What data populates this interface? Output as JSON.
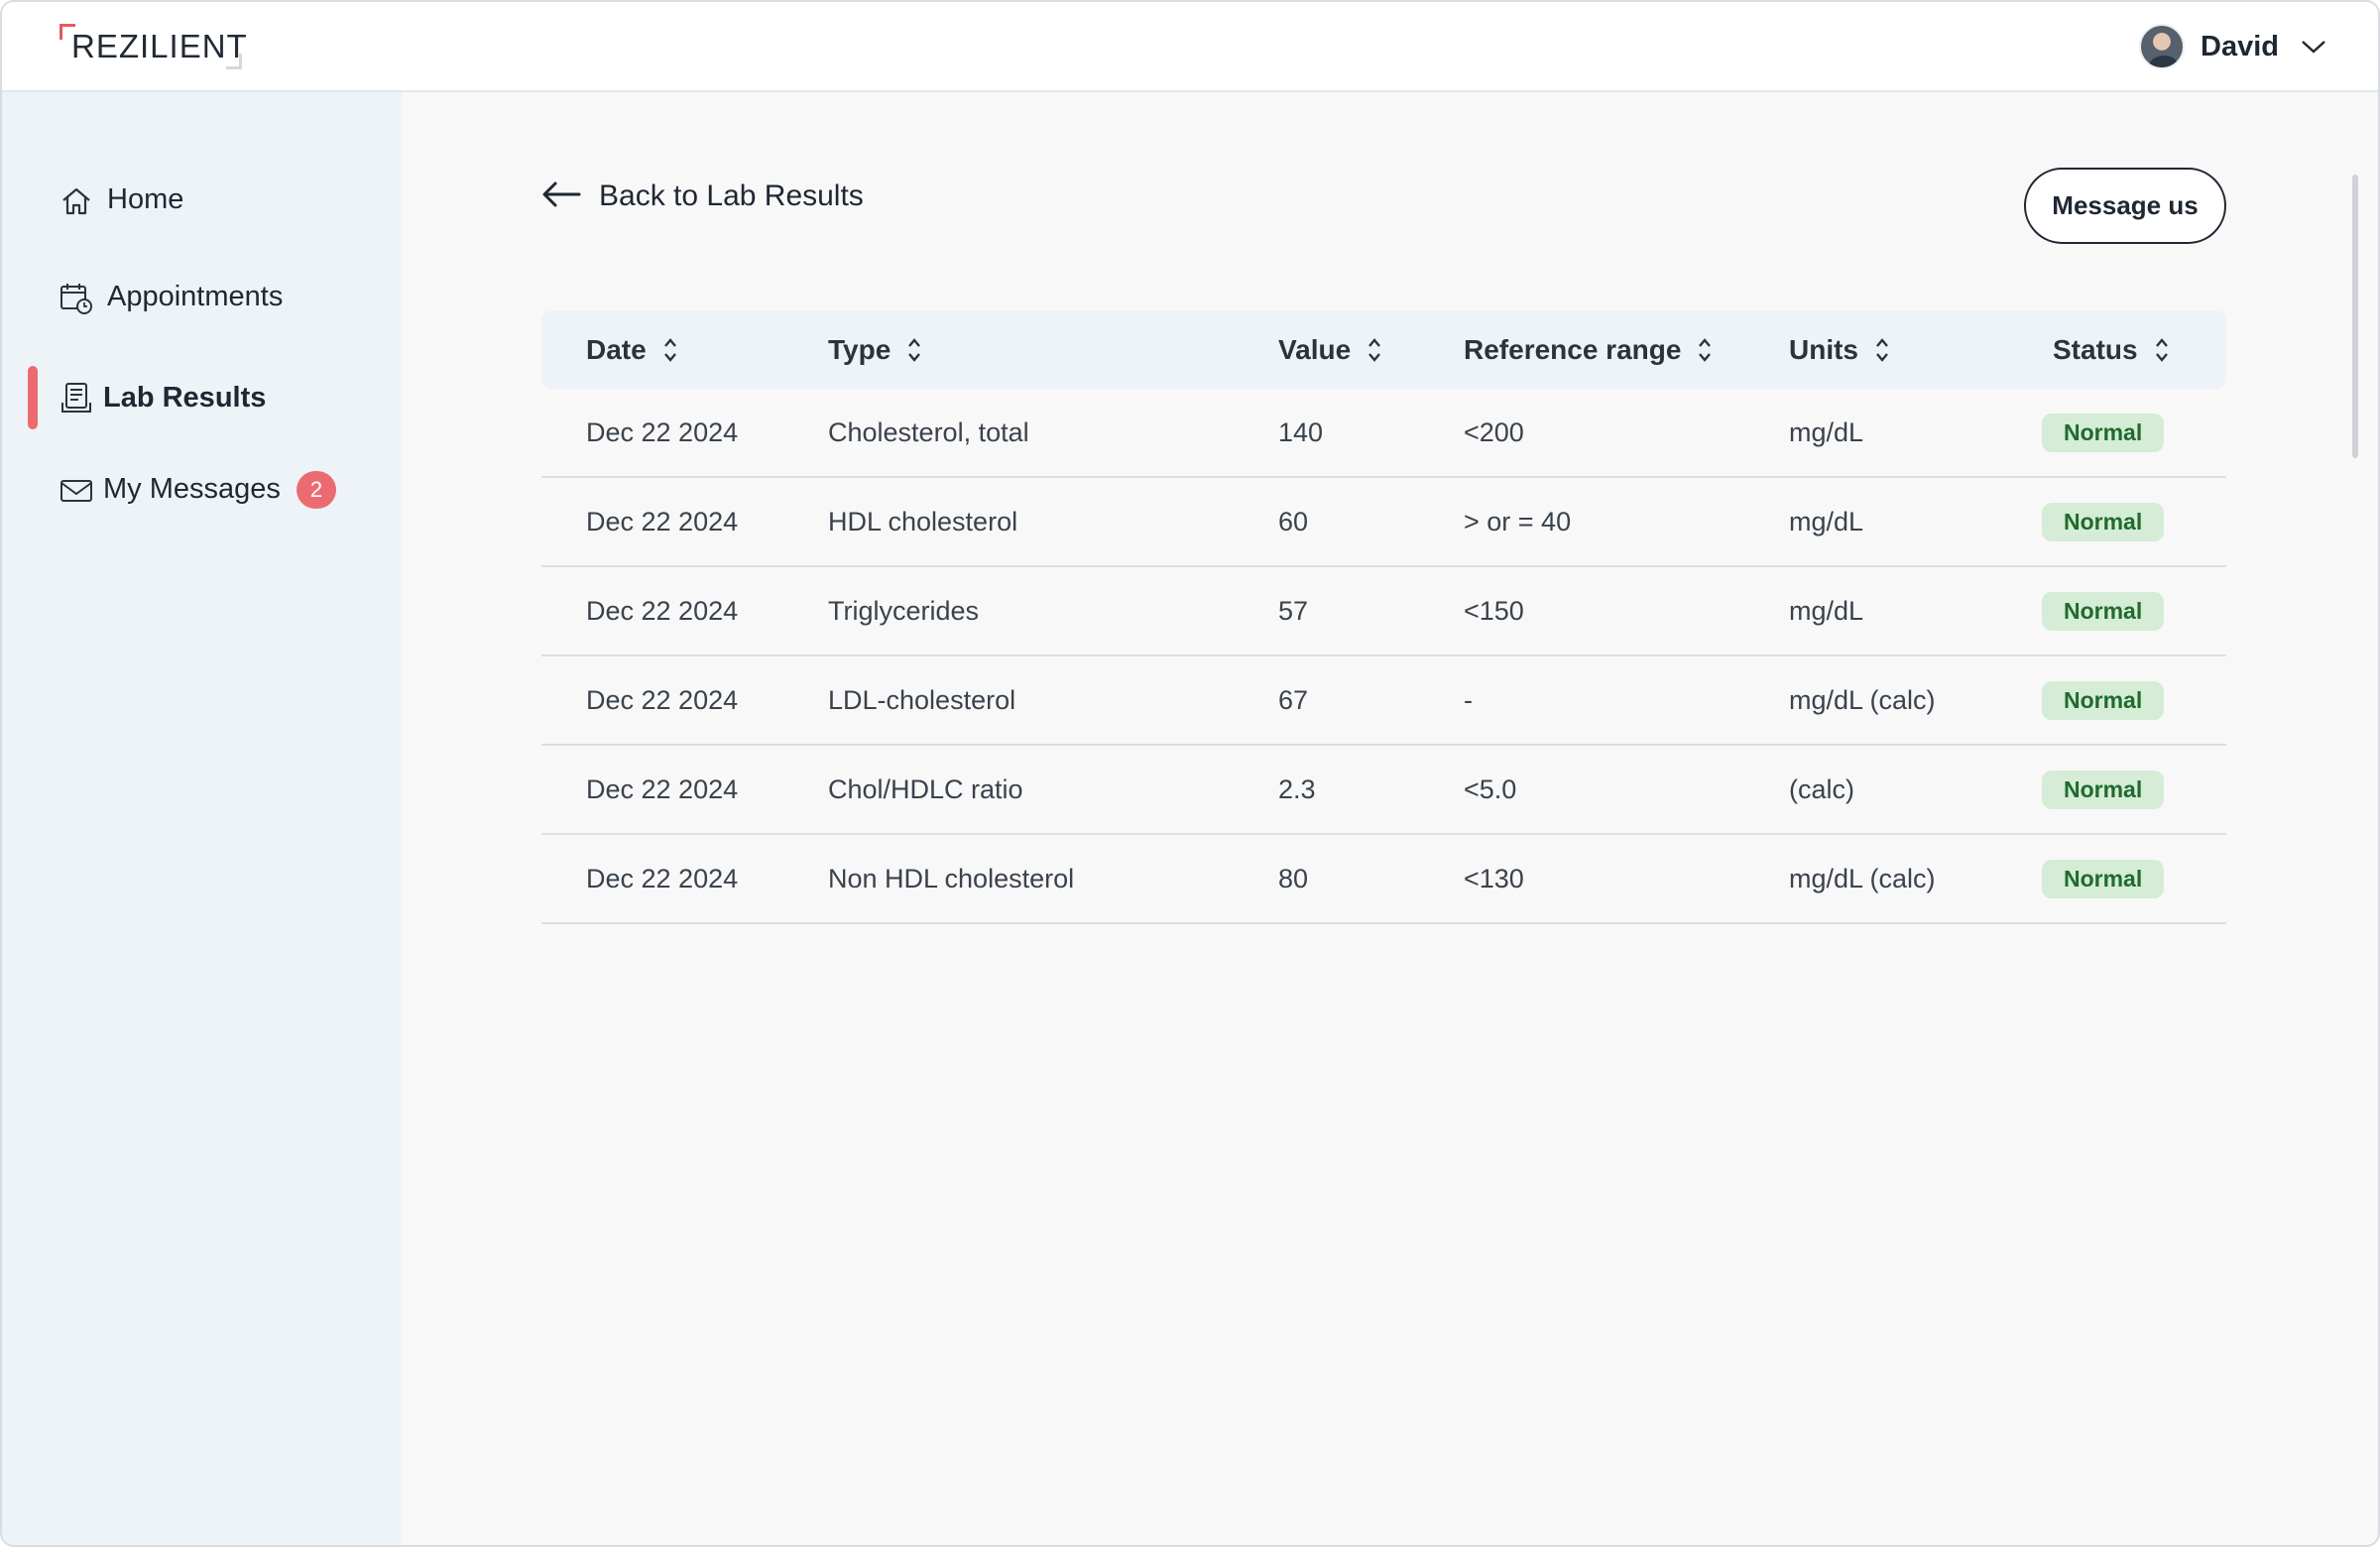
{
  "header": {
    "logo_text": "REZILIENT",
    "user_name": "David"
  },
  "sidebar": {
    "items": [
      {
        "label": "Home",
        "icon": "home-icon"
      },
      {
        "label": "Appointments",
        "icon": "calendar-clock-icon"
      },
      {
        "label": "Lab Results",
        "icon": "lab-report-icon",
        "active": true
      },
      {
        "label": "My Messages",
        "icon": "envelope-icon",
        "badge": "2"
      }
    ]
  },
  "main": {
    "back_label": "Back to Lab Results",
    "message_button": "Message us",
    "table": {
      "columns": [
        "Date",
        "Type",
        "Value",
        "Reference range",
        "Units",
        "Status"
      ],
      "rows": [
        {
          "date": "Dec 22 2024",
          "type": "Cholesterol, total",
          "value": "140",
          "ref": "<200",
          "units": "mg/dL",
          "status": "Normal"
        },
        {
          "date": "Dec 22 2024",
          "type": "HDL cholesterol",
          "value": "60",
          "ref": "> or = 40",
          "units": "mg/dL",
          "status": "Normal"
        },
        {
          "date": "Dec 22 2024",
          "type": "Triglycerides",
          "value": "57",
          "ref": "<150",
          "units": "mg/dL",
          "status": "Normal"
        },
        {
          "date": "Dec 22 2024",
          "type": "LDL-cholesterol",
          "value": "67",
          "ref": "-",
          "units": "mg/dL (calc)",
          "status": "Normal"
        },
        {
          "date": "Dec 22 2024",
          "type": "Chol/HDLC ratio",
          "value": "2.3",
          "ref": "<5.0",
          "units": "(calc)",
          "status": "Normal"
        },
        {
          "date": "Dec 22 2024",
          "type": "Non HDL cholesterol",
          "value": "80",
          "ref": "<130",
          "units": "mg/dL (calc)",
          "status": "Normal"
        }
      ]
    }
  },
  "colors": {
    "accent": "#ec6b70",
    "status_normal_bg": "#d5ecd7",
    "status_normal_text": "#1f6b2c",
    "sidebar_bg": "#eef3f8"
  }
}
